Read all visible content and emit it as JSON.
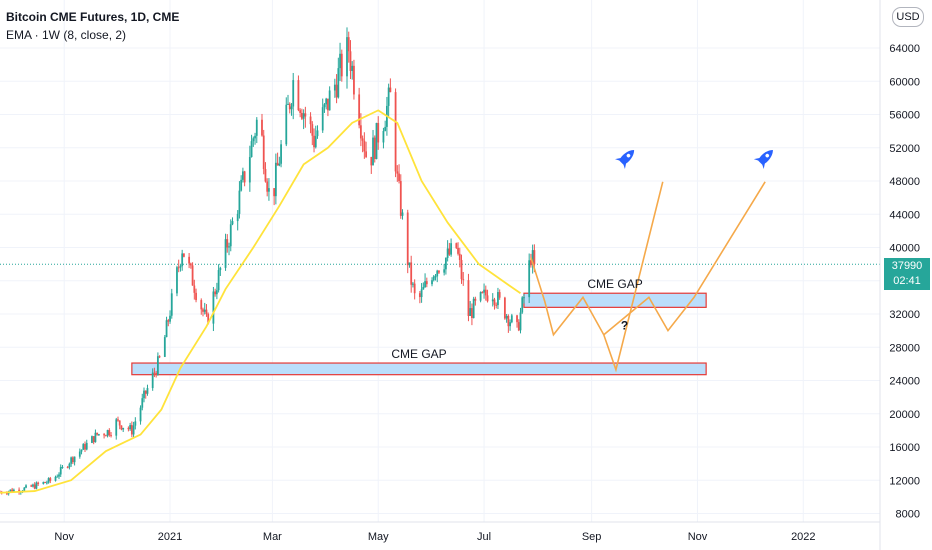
{
  "header": {
    "title": "Bitcoin CME Futures, 1D, CME",
    "indicator": "EMA · 1W (8, close, 2)"
  },
  "currency_button": "USD",
  "price_tag": {
    "price": "37990",
    "countdown": "02:41"
  },
  "colors": {
    "up": "#26a69a",
    "down": "#ef5350",
    "ema": "#ffe33b",
    "projection": "#f5a94a",
    "gap_fill": "#bbdefb",
    "gap_border": "#e53935",
    "rocket": "#2962ff"
  },
  "chart_data": {
    "type": "candlestick",
    "title": "Bitcoin CME Futures, 1D, CME",
    "y_axis": {
      "ticks": [
        8000,
        12000,
        16000,
        20000,
        24000,
        28000,
        32000,
        36000,
        40000,
        44000,
        48000,
        52000,
        56000,
        60000,
        64000
      ]
    },
    "x_axis": {
      "ticks": [
        "Nov",
        "2021",
        "Mar",
        "May",
        "Jul",
        "Sep",
        "Nov",
        "2022"
      ]
    },
    "price_path": [
      [
        "2020-09-25",
        10600
      ],
      [
        "2020-10-10",
        11000
      ],
      [
        "2020-10-25",
        12000
      ],
      [
        "2020-11-05",
        14500
      ],
      [
        "2020-11-20",
        17500
      ],
      [
        "2020-11-28",
        18000
      ],
      [
        "2020-12-01",
        19000
      ],
      [
        "2020-12-10",
        18000
      ],
      [
        "2020-12-17",
        22000
      ],
      [
        "2020-12-27",
        27000
      ],
      [
        "2021-01-08",
        40000
      ],
      [
        "2021-01-22",
        31000
      ],
      [
        "2021-02-10",
        46000
      ],
      [
        "2021-02-21",
        56000
      ],
      [
        "2021-02-28",
        45000
      ],
      [
        "2021-03-13",
        60000
      ],
      [
        "2021-03-25",
        53000
      ],
      [
        "2021-04-14",
        64000
      ],
      [
        "2021-04-25",
        50000
      ],
      [
        "2021-05-08",
        58000
      ],
      [
        "2021-05-12",
        48000
      ],
      [
        "2021-05-19",
        37000
      ],
      [
        "2021-05-23",
        33000
      ],
      [
        "2021-06-01",
        37000
      ],
      [
        "2021-06-15",
        40000
      ],
      [
        "2021-06-22",
        32000
      ],
      [
        "2021-07-05",
        35000
      ],
      [
        "2021-07-20",
        30000
      ],
      [
        "2021-07-24",
        34000
      ],
      [
        "2021-07-28",
        39000
      ],
      [
        "2021-07-30",
        37990
      ]
    ],
    "ema_line": [
      [
        "2020-09-25",
        10500
      ],
      [
        "2020-10-15",
        10700
      ],
      [
        "2020-11-05",
        12000
      ],
      [
        "2020-11-25",
        15500
      ],
      [
        "2020-12-15",
        17500
      ],
      [
        "2020-12-27",
        20500
      ],
      [
        "2021-01-07",
        25500
      ],
      [
        "2021-01-22",
        30500
      ],
      [
        "2021-02-02",
        35000
      ],
      [
        "2021-02-18",
        40000
      ],
      [
        "2021-03-05",
        45000
      ],
      [
        "2021-03-19",
        50000
      ],
      [
        "2021-04-02",
        52000
      ],
      [
        "2021-04-16",
        55000
      ],
      [
        "2021-05-01",
        56500
      ],
      [
        "2021-05-12",
        55000
      ],
      [
        "2021-05-26",
        48000
      ],
      [
        "2021-06-10",
        43000
      ],
      [
        "2021-06-28",
        38000
      ],
      [
        "2021-07-15",
        35500
      ],
      [
        "2021-07-22",
        34500
      ]
    ],
    "last_price": 37990,
    "annotations": [
      {
        "type": "zone",
        "label": "CME GAP",
        "from": "2021-07-24",
        "to": "2021-11-06",
        "low": 32800,
        "high": 34500
      },
      {
        "type": "zone",
        "label": "CME GAP",
        "from": "2020-12-10",
        "to": "2021-11-06",
        "low": 24700,
        "high": 26100
      },
      {
        "type": "label",
        "text": "?",
        "date": "2021-09-20",
        "price": 31000
      }
    ],
    "projections": [
      [
        [
          "2021-07-28",
          38800
        ],
        [
          "2021-08-05",
          33500
        ],
        [
          "2021-08-10",
          29500
        ],
        [
          "2021-08-27",
          34000
        ],
        [
          "2021-09-08",
          29500
        ],
        [
          "2021-09-15",
          25300
        ],
        [
          "2021-10-12",
          47900
        ]
      ],
      [
        [
          "2021-09-08",
          29500
        ],
        [
          "2021-10-04",
          34000
        ],
        [
          "2021-10-15",
          30000
        ],
        [
          "2021-10-30",
          34000
        ],
        [
          "2021-12-10",
          47900
        ]
      ]
    ],
    "rockets": [
      [
        "2021-09-21",
        50800
      ],
      [
        "2021-12-10",
        50800
      ]
    ]
  }
}
